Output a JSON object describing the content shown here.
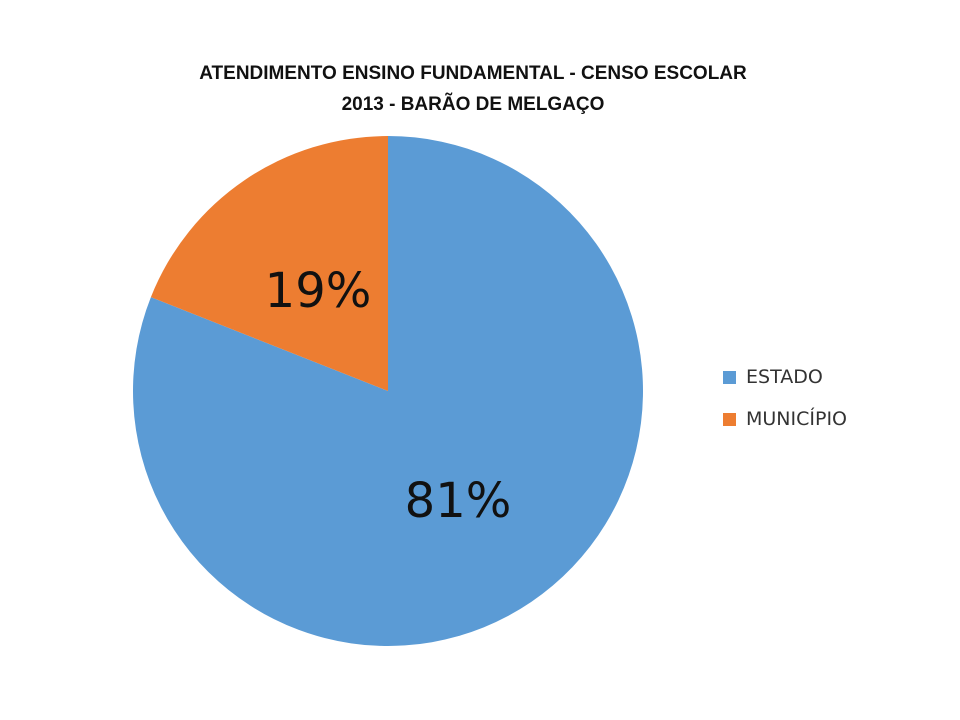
{
  "chart_data": {
    "type": "pie",
    "title_lines": [
      "ATENDIMENTO ENSINO FUNDAMENTAL -  CENSO ESCOLAR",
      "2013 - BARÃO DE MELGAÇO"
    ],
    "categories": [
      "ESTADO",
      "MUNICÍPIO"
    ],
    "values": [
      81,
      19
    ],
    "data_labels": [
      "81%",
      "19%"
    ],
    "colors": [
      "#5B9BD5",
      "#ED7D31"
    ],
    "legend_position": "right"
  }
}
